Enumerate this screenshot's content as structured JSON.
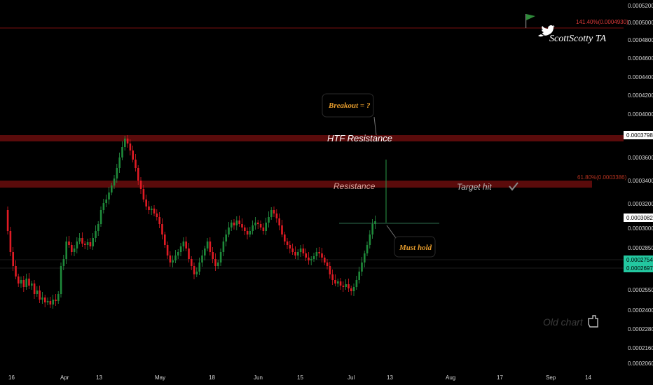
{
  "chart_data": {
    "type": "candlestick",
    "y_ticks": [
      "0.0005200",
      "0.0005000",
      "0.0004800",
      "0.0004600",
      "0.0004400",
      "0.0004200",
      "0.0004000",
      "0.0003600",
      "0.0003400",
      "0.0003200",
      "0.0003000",
      "0.0002850",
      "0.0002550",
      "0.0002400",
      "0.0002280",
      "0.0002160",
      "0.0002060"
    ],
    "x_ticks": [
      "16",
      "Apr",
      "13",
      "May",
      "18",
      "Jun",
      "15",
      "Jul",
      "13",
      "Aug",
      "17",
      "Sep",
      "14"
    ],
    "price_labels": [
      {
        "text": "0.0003798",
        "style": "white"
      },
      {
        "text": "0.0003082",
        "style": "white-dark"
      },
      {
        "text": "0.0002754",
        "style": "green"
      },
      {
        "text": "0.0002697",
        "style": "green"
      }
    ],
    "fib_levels": [
      {
        "text": "141.40%(0.0004930)"
      },
      {
        "text": "61.80%(0.0003386)"
      }
    ],
    "annotations": {
      "watermark": "ScottScotty TA",
      "breakout": "Breakout = ?",
      "htf_resistance": "HTF Resistance",
      "resistance": "Resistance",
      "target_hit": "Target hit",
      "must_hold": "Must hold",
      "old_chart": "Old chart"
    },
    "candles_summary": "approximate OHLC series from mid-March to mid-July; highs near 0.0003798 in mid-April, lows near 0.00025 in early July, last close near 0.0003082",
    "colors": {
      "up": "#1e8a3a",
      "down": "#e01b24",
      "background": "#000000",
      "resistance_band": "#5a0b0b"
    }
  }
}
